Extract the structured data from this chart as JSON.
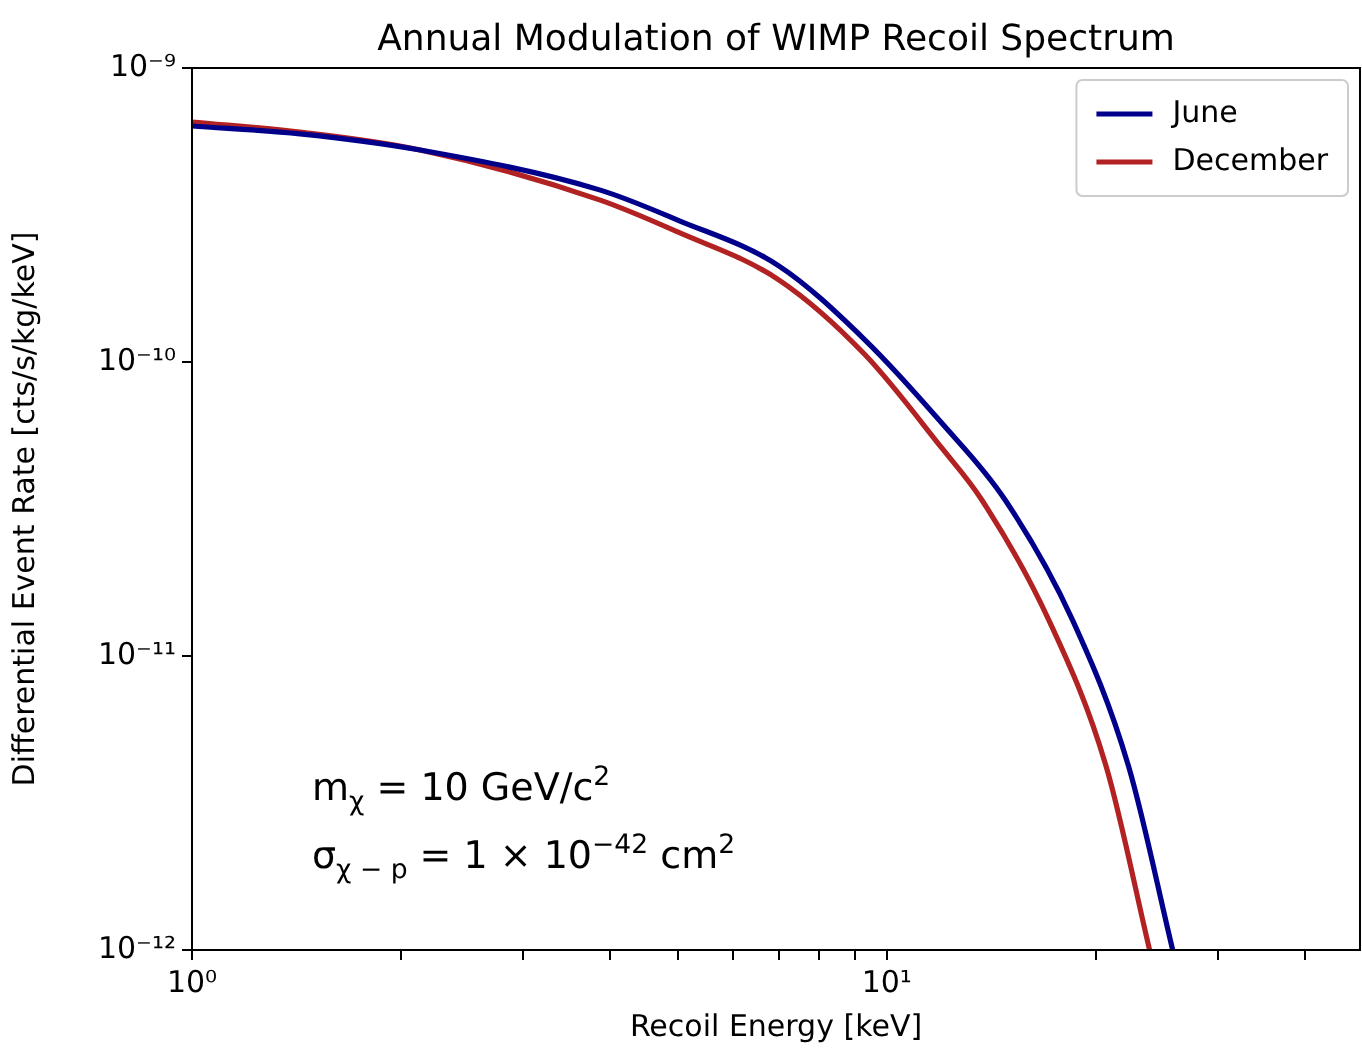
{
  "chart_data": {
    "type": "line",
    "title": "Annual Modulation of WIMP Recoil Spectrum",
    "xlabel": "Recoil Energy [keV]",
    "ylabel": "Differential Event Rate [cts/s/kg/keV]",
    "log": "xy",
    "grid": false,
    "legend": "top right",
    "marker": "none",
    "line_style": "solid",
    "xlim": [
      1,
      48
    ],
    "ylim": [
      1e-12,
      1e-09
    ],
    "xticks": [
      {
        "value": 1,
        "label": "10⁰"
      },
      {
        "value": 2,
        "label": null
      },
      {
        "value": 3,
        "label": null
      },
      {
        "value": 4,
        "label": null
      },
      {
        "value": 5,
        "label": null
      },
      {
        "value": 6,
        "label": null
      },
      {
        "value": 7,
        "label": null
      },
      {
        "value": 8,
        "label": null
      },
      {
        "value": 9,
        "label": null
      },
      {
        "value": 10,
        "label": "10¹"
      },
      {
        "value": 20,
        "label": null
      },
      {
        "value": 30,
        "label": null
      },
      {
        "value": 40,
        "label": null
      }
    ],
    "yticks": [
      {
        "value": 1e-12,
        "label": "10⁻¹²"
      },
      {
        "value": 1e-11,
        "label": "10⁻¹¹"
      },
      {
        "value": 1e-10,
        "label": "10⁻¹⁰"
      },
      {
        "value": 1e-09,
        "label": "10⁻⁹"
      }
    ],
    "series": [
      {
        "name": "June",
        "color": "#00008b",
        "x": [
          1,
          1.43,
          2.13,
          3.86,
          5,
          7.0,
          9.3,
          12,
          14.8,
          18.5,
          22.3,
          25.8
        ],
        "values": [
          6.35e-10,
          5.97e-10,
          5.26e-10,
          3.85e-10,
          3.04e-10,
          2.12e-10,
          1.19e-10,
          6.2e-11,
          3.4e-11,
          1.33e-11,
          4.2e-12,
          1e-12
        ]
      },
      {
        "name": "December",
        "color": "#b22222",
        "x": [
          1,
          1.43,
          2.13,
          3.86,
          5,
          7.0,
          9.3,
          12,
          13.7,
          17.1,
          20.7,
          23.9
        ],
        "values": [
          6.55e-10,
          6.05e-10,
          5.26e-10,
          3.56e-10,
          2.77e-10,
          1.9e-10,
          1.06e-10,
          5.1e-11,
          3.4e-11,
          1.33e-11,
          4.2e-12,
          1e-12
        ]
      }
    ],
    "annotations": [
      "m$_{χ}$ = 10 GeV/c$^{2}$",
      "σ$_{χ − p}$ = 1 × 10$^{−42}$ cm$^{2}$"
    ]
  }
}
